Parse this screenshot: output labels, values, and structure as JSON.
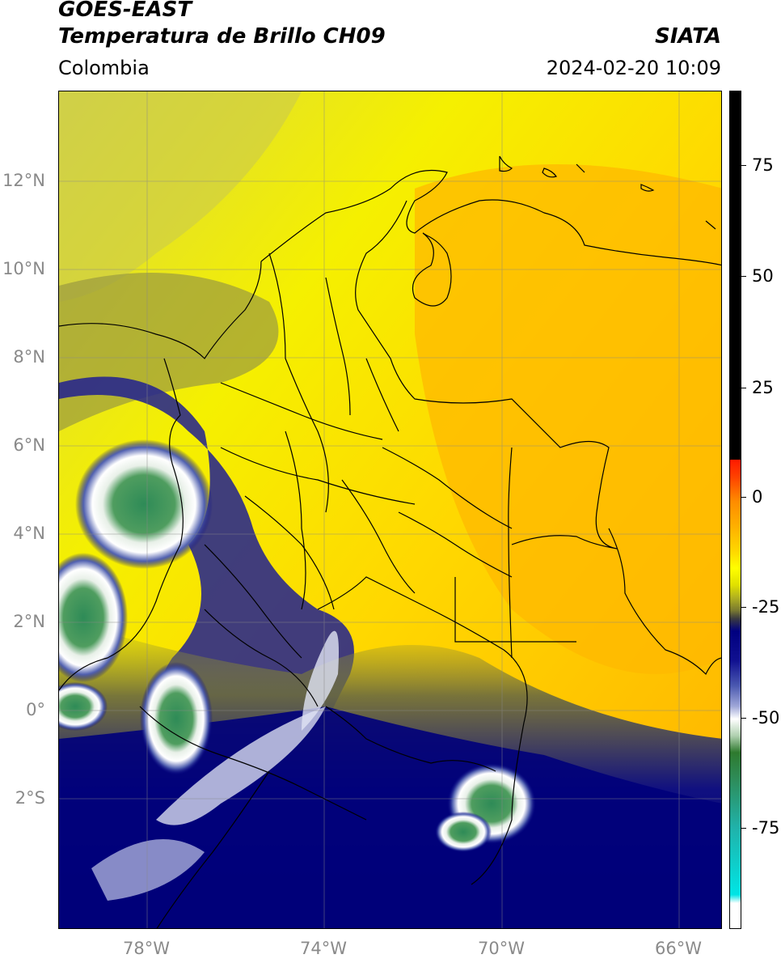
{
  "header": {
    "satellite": "GOES-EAST",
    "product": "Temperatura de Brillo CH09",
    "region": "Colombia",
    "agency": "SIATA",
    "datetime": "2024-02-20 10:09"
  },
  "map": {
    "lat_labels": [
      "12°N",
      "10°N",
      "8°N",
      "6°N",
      "4°N",
      "2°N",
      "0°",
      "2°S"
    ],
    "lon_labels": [
      "78°W",
      "74°W",
      "70°W",
      "66°W"
    ],
    "lon_range": [
      -80,
      -65
    ],
    "lat_range": [
      -5,
      14
    ],
    "grid": true
  },
  "colorbar": {
    "labels": [
      "75",
      "50",
      "25",
      "0",
      "-25",
      "-50",
      "-75"
    ],
    "range": [
      -92,
      90
    ],
    "colors": {
      "black": "#000000",
      "red": "#ff1a00",
      "orange": "#ffa500",
      "yellow": "#ffff00",
      "olive": "#7a7a30",
      "navy": "#000080",
      "white": "#ffffff",
      "green": "#1f7a1f",
      "teal": "#20b2aa",
      "cyan": "#00e5e5"
    }
  }
}
